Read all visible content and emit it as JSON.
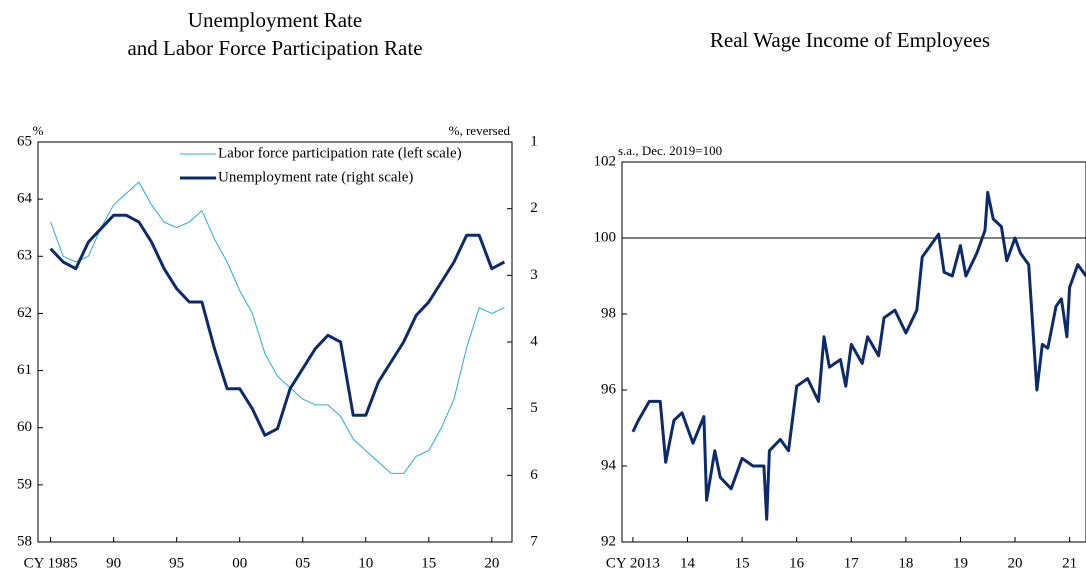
{
  "chart_data": [
    {
      "type": "line",
      "title": [
        "Unemployment Rate",
        "and Labor Force Participation Rate"
      ],
      "y_label": "%",
      "y2_label": "%, reversed",
      "x": [
        1985,
        1986,
        1987,
        1988,
        1989,
        1990,
        1991,
        1992,
        1993,
        1994,
        1995,
        1996,
        1997,
        1998,
        1999,
        2000,
        2001,
        2002,
        2003,
        2004,
        2005,
        2006,
        2007,
        2008,
        2009,
        2010,
        2011,
        2012,
        2013,
        2014,
        2015,
        2016,
        2017,
        2018,
        2019,
        2020,
        2021
      ],
      "series": [
        {
          "name": "Labor force participation rate (left scale)",
          "color": "#29abe2",
          "width": 1,
          "values": [
            63.6,
            63.0,
            62.9,
            63.0,
            63.5,
            63.9,
            64.1,
            64.3,
            63.9,
            63.6,
            63.5,
            63.6,
            63.8,
            63.3,
            62.9,
            62.4,
            62.0,
            61.3,
            60.9,
            60.7,
            60.5,
            60.4,
            60.4,
            60.2,
            59.8,
            59.6,
            59.4,
            59.2,
            59.2,
            59.5,
            59.6,
            60.0,
            60.5,
            61.4,
            62.1,
            62.0,
            62.1
          ]
        },
        {
          "name": "Unemployment rate (right scale)",
          "color": "#0d2b6b",
          "width": 3,
          "axis": "y2",
          "values": [
            2.6,
            2.8,
            2.9,
            2.5,
            2.3,
            2.1,
            2.1,
            2.2,
            2.5,
            2.9,
            3.2,
            3.4,
            3.4,
            4.1,
            4.7,
            4.7,
            5.0,
            5.4,
            5.3,
            4.7,
            4.4,
            4.1,
            3.9,
            4.0,
            5.1,
            5.1,
            4.6,
            4.3,
            4.0,
            3.6,
            3.4,
            3.1,
            2.8,
            2.4,
            2.4,
            2.9,
            2.8
          ]
        }
      ],
      "xlim": [
        1984,
        2021.6
      ],
      "xticks": [
        {
          "value": 1985,
          "label": "CY 1985"
        },
        {
          "value": 1990,
          "label": "90"
        },
        {
          "value": 1995,
          "label": "95"
        },
        {
          "value": 2000,
          "label": "00"
        },
        {
          "value": 2005,
          "label": "05"
        },
        {
          "value": 2010,
          "label": "10"
        },
        {
          "value": 2015,
          "label": "15"
        },
        {
          "value": 2020,
          "label": "20"
        }
      ],
      "ylim": [
        58,
        65
      ],
      "yticks": [
        58,
        59,
        60,
        61,
        62,
        63,
        64,
        65
      ],
      "y2lim": [
        1,
        7
      ],
      "y2ticks": [
        1,
        2,
        3,
        4,
        5,
        6,
        7
      ],
      "y2_reversed": true,
      "legend": "upper right"
    },
    {
      "type": "line",
      "title": [
        "Real Wage Income of Employees"
      ],
      "y_label": "s.a., Dec. 2019=100",
      "x": [
        2013.0,
        2013.1,
        2013.3,
        2013.5,
        2013.6,
        2013.75,
        2013.9,
        2014.1,
        2014.3,
        2014.35,
        2014.5,
        2014.6,
        2014.8,
        2015.0,
        2015.2,
        2015.4,
        2015.45,
        2015.5,
        2015.7,
        2015.85,
        2016.0,
        2016.2,
        2016.4,
        2016.5,
        2016.6,
        2016.8,
        2016.9,
        2017.0,
        2017.2,
        2017.3,
        2017.5,
        2017.6,
        2017.8,
        2018.0,
        2018.2,
        2018.3,
        2018.5,
        2018.6,
        2018.7,
        2018.85,
        2019.0,
        2019.1,
        2019.3,
        2019.45,
        2019.5,
        2019.6,
        2019.75,
        2019.85,
        2020.0,
        2020.1,
        2020.25,
        2020.4,
        2020.5,
        2020.6,
        2020.75,
        2020.85,
        2020.95,
        2021.0,
        2021.15,
        2021.3
      ],
      "series": [
        {
          "name": null,
          "color": "#0d2b6b",
          "width": 3,
          "values": [
            94.9,
            95.2,
            95.7,
            95.7,
            94.1,
            95.2,
            95.4,
            94.6,
            95.3,
            93.1,
            94.4,
            93.7,
            93.4,
            94.2,
            94.0,
            94.0,
            92.6,
            94.4,
            94.7,
            94.4,
            96.1,
            96.3,
            95.7,
            97.4,
            96.6,
            96.8,
            96.1,
            97.2,
            96.7,
            97.4,
            96.9,
            97.9,
            98.1,
            97.5,
            98.1,
            99.5,
            99.9,
            100.1,
            99.1,
            99.0,
            99.8,
            99.0,
            99.6,
            100.2,
            101.2,
            100.5,
            100.3,
            99.4,
            100.0,
            99.6,
            99.3,
            96.0,
            97.2,
            97.1,
            98.2,
            98.4,
            97.4,
            98.7,
            99.3,
            99.0
          ]
        }
      ],
      "xlim": [
        2012.8,
        2021.3
      ],
      "xticks": [
        {
          "value": 2013,
          "label": "CY 2013"
        },
        {
          "value": 2014,
          "label": "14"
        },
        {
          "value": 2015,
          "label": "15"
        },
        {
          "value": 2016,
          "label": "16"
        },
        {
          "value": 2017,
          "label": "17"
        },
        {
          "value": 2018,
          "label": "18"
        },
        {
          "value": 2019,
          "label": "19"
        },
        {
          "value": 2020,
          "label": "20"
        },
        {
          "value": 2021,
          "label": "21"
        }
      ],
      "ylim": [
        92,
        102
      ],
      "yticks": [
        92,
        94,
        96,
        98,
        100,
        102
      ],
      "hline": 100
    }
  ]
}
